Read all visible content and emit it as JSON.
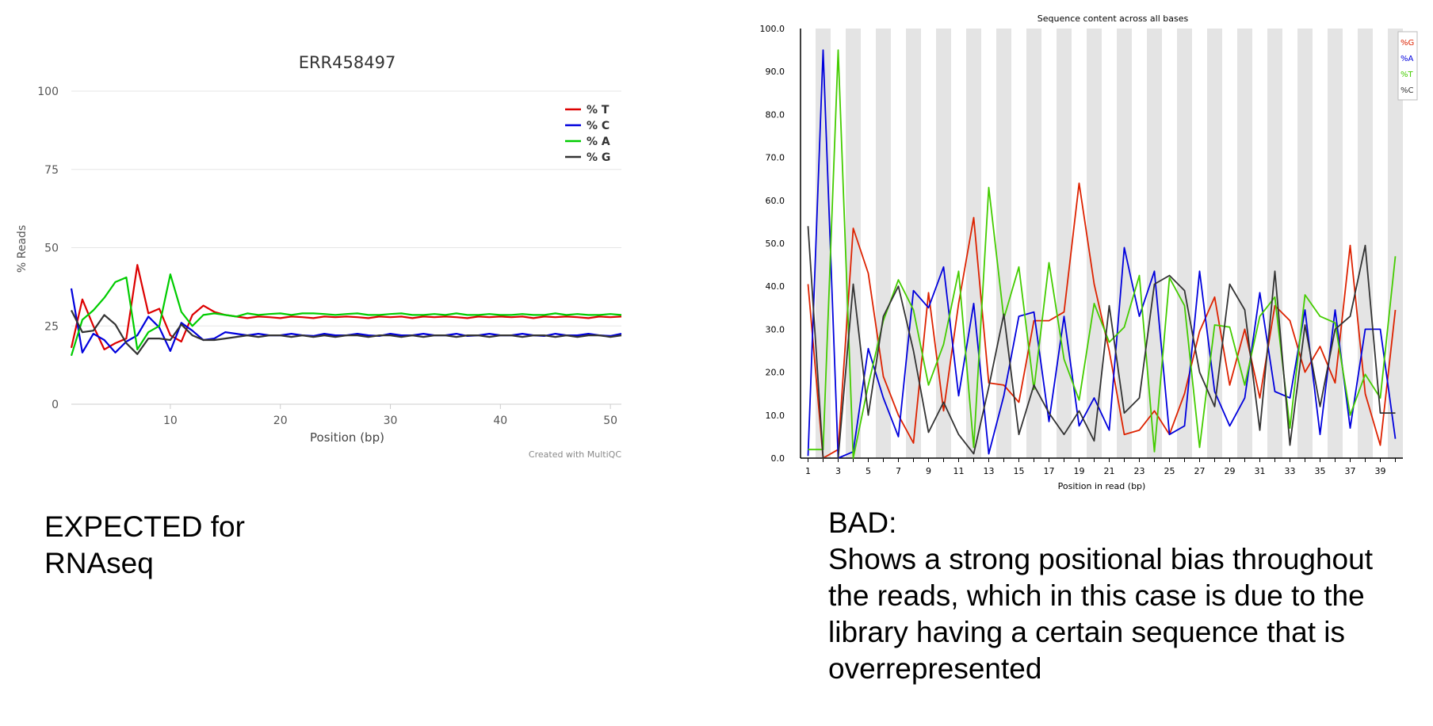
{
  "left_caption": {
    "line1": "EXPECTED for",
    "line2": "RNAseq"
  },
  "right_caption": {
    "heading": "BAD:",
    "body": "Shows a strong positional bias throughout the reads, which in this case is due to the library having a certain sequence that is overrepresented"
  },
  "chart_data": [
    {
      "type": "line",
      "title": "ERR458497",
      "xlabel": "Position (bp)",
      "ylabel": "% Reads",
      "credit": "Created with MultiQC",
      "xlim": [
        1,
        51
      ],
      "ylim": [
        0,
        100
      ],
      "xticks": [
        10,
        20,
        30,
        40,
        50
      ],
      "yticks": [
        0,
        25,
        50,
        75,
        100
      ],
      "grid": true,
      "legend_position": "top-right",
      "x": [
        1,
        2,
        3,
        4,
        5,
        6,
        7,
        8,
        9,
        10,
        11,
        12,
        13,
        14,
        15,
        16,
        17,
        18,
        19,
        20,
        21,
        22,
        23,
        24,
        25,
        26,
        27,
        28,
        29,
        30,
        31,
        32,
        33,
        34,
        35,
        36,
        37,
        38,
        39,
        40,
        41,
        42,
        43,
        44,
        45,
        46,
        47,
        48,
        49,
        50,
        51
      ],
      "series": [
        {
          "name": "% T",
          "color": "#dd0000",
          "values": [
            18,
            33.5,
            25,
            17.5,
            19.5,
            21,
            44.5,
            29,
            30.5,
            22,
            20,
            28.5,
            31.5,
            29.5,
            28.5,
            28,
            27.5,
            28,
            27.8,
            27.5,
            28,
            27.8,
            27.5,
            28,
            27.8,
            28,
            27.8,
            27.5,
            28,
            27.8,
            28,
            27.5,
            28,
            27.8,
            28,
            27.8,
            27.5,
            28,
            27.8,
            28,
            27.8,
            28,
            27.5,
            28,
            27.8,
            28,
            27.8,
            27.5,
            28,
            27.8,
            28
          ]
        },
        {
          "name": "% C",
          "color": "#0000dd",
          "values": [
            37,
            16.5,
            22.5,
            20.5,
            16.5,
            20,
            22,
            28,
            24.5,
            17,
            26,
            23.5,
            20.5,
            21,
            23,
            22.5,
            22,
            22.5,
            22,
            22,
            22.5,
            22,
            21.8,
            22.5,
            22,
            22,
            22.5,
            22,
            21.8,
            22.5,
            22,
            22,
            22.5,
            22,
            22,
            22.5,
            21.8,
            22,
            22.5,
            22,
            22,
            22.5,
            22,
            21.8,
            22.5,
            22,
            22,
            22.5,
            22,
            21.8,
            22.5
          ]
        },
        {
          "name": "% A",
          "color": "#00cc00",
          "values": [
            15.5,
            27,
            30,
            34,
            39,
            40.5,
            17.5,
            23,
            25,
            41.5,
            29.5,
            25,
            28.5,
            29,
            28.5,
            28,
            29,
            28.5,
            28.8,
            29,
            28.5,
            29,
            29,
            28.8,
            28.5,
            28.8,
            29,
            28.5,
            28.5,
            28.8,
            29,
            28.5,
            28.5,
            28.8,
            28.5,
            29,
            28.5,
            28.5,
            28.8,
            28.5,
            28.5,
            28.8,
            28.5,
            28.5,
            29,
            28.5,
            28.8,
            28.5,
            28.5,
            28.8,
            28.5
          ]
        },
        {
          "name": "% G",
          "color": "#333333",
          "values": [
            30,
            23,
            23.5,
            28.5,
            25.5,
            19.5,
            16,
            21,
            21,
            20.5,
            25.5,
            22,
            20.5,
            20.5,
            21,
            21.5,
            22,
            21.5,
            22,
            22,
            21.5,
            22,
            21.5,
            22,
            21.5,
            22,
            22,
            21.5,
            22,
            22,
            21.5,
            22,
            21.5,
            22,
            22,
            21.5,
            22,
            22,
            21.5,
            22,
            22,
            21.5,
            22,
            22,
            21.5,
            22,
            21.5,
            22,
            22,
            21.5,
            22
          ]
        }
      ]
    },
    {
      "type": "line",
      "title": "Sequence content across all bases",
      "xlabel": "Position in read (bp)",
      "xlim": [
        1,
        40
      ],
      "ylim": [
        0,
        100
      ],
      "yticks": [
        "0.0",
        "10.0",
        "20.0",
        "30.0",
        "40.0",
        "50.0",
        "60.0",
        "70.0",
        "80.0",
        "90.0",
        "100.0"
      ],
      "xticks": [
        1,
        3,
        5,
        7,
        9,
        11,
        13,
        15,
        17,
        19,
        21,
        23,
        25,
        27,
        29,
        31,
        33,
        35,
        37,
        39
      ],
      "alternating_bands": true,
      "legend_position": "top-right",
      "x": [
        1,
        2,
        3,
        4,
        5,
        6,
        7,
        8,
        9,
        10,
        11,
        12,
        13,
        14,
        15,
        16,
        17,
        18,
        19,
        20,
        21,
        22,
        23,
        24,
        25,
        26,
        27,
        28,
        29,
        30,
        31,
        32,
        33,
        34,
        35,
        36,
        37,
        38,
        39,
        40
      ],
      "series": [
        {
          "name": "%G",
          "color": "#dd2200",
          "values": [
            40.5,
            0,
            2,
            53.5,
            43,
            19,
            10,
            3.5,
            38.5,
            11,
            36,
            56,
            17.5,
            17,
            13,
            32,
            32,
            34,
            64,
            40.5,
            25,
            5.5,
            6.5,
            11,
            5.5,
            15,
            29.5,
            37.5,
            17,
            30,
            14,
            35.5,
            32,
            20,
            26,
            17.5,
            49.5,
            15,
            3,
            34.5
          ]
        },
        {
          "name": "%A",
          "color": "#0000dd",
          "values": [
            0.5,
            95,
            0,
            1.5,
            25.5,
            14,
            5,
            39,
            35,
            44.5,
            14.5,
            36,
            1,
            14.5,
            33,
            34,
            8.5,
            33,
            7.5,
            14,
            6.5,
            49,
            33,
            43.5,
            5.5,
            7.5,
            43.5,
            15.5,
            7.5,
            14,
            38.5,
            15.5,
            14,
            34.5,
            5.5,
            34.5,
            7,
            30,
            30,
            4.5
          ]
        },
        {
          "name": "%T",
          "color": "#44cc00",
          "values": [
            2,
            2,
            95,
            0,
            17,
            32,
            41.5,
            34.5,
            17,
            26.5,
            43.5,
            2.5,
            63,
            32.5,
            44.5,
            16,
            45.5,
            23,
            13.5,
            36,
            27,
            30.5,
            42.5,
            1.5,
            42,
            35.5,
            2.5,
            31,
            30.5,
            17,
            33,
            37.5,
            7,
            38,
            33,
            31.5,
            10,
            19.5,
            14,
            47
          ]
        },
        {
          "name": "%C",
          "color": "#333333",
          "values": [
            54,
            0,
            0,
            40.5,
            10,
            33,
            40,
            25,
            6,
            13,
            5.5,
            1,
            16.5,
            33.5,
            5.5,
            17,
            10.5,
            5.5,
            11,
            4,
            35.5,
            10.5,
            14,
            40.5,
            42.5,
            39,
            20,
            12,
            40.5,
            34.5,
            6.5,
            43.5,
            3,
            31,
            12,
            30,
            33,
            49.5,
            10.5,
            10.5
          ]
        }
      ]
    }
  ]
}
